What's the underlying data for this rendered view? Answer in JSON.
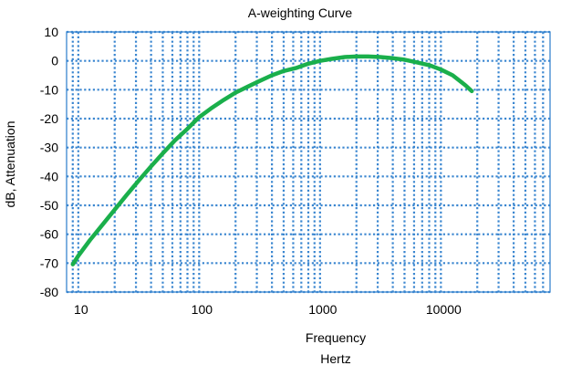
{
  "chart_data": {
    "type": "line",
    "title": "A-weighting Curve",
    "xlabel": [
      "Frequency",
      "Hertz"
    ],
    "ylabel": "dB, Attenuation",
    "x_scale": "log",
    "xlim": [
      8,
      80000
    ],
    "ylim": [
      -80,
      10
    ],
    "x_ticks": [
      10,
      100,
      1000,
      10000
    ],
    "x_tick_labels": [
      "10",
      "100",
      "1000",
      "10000"
    ],
    "y_ticks": [
      10,
      0,
      -10,
      -20,
      -30,
      -40,
      -50,
      -60,
      -70,
      -80
    ],
    "y_tick_labels": [
      "10",
      "0",
      "-10",
      "-20",
      "-30",
      "-40",
      "-50",
      "-60",
      "-70",
      "-80"
    ],
    "grid": true,
    "grid_style": "dotted",
    "legend": "none",
    "series": [
      {
        "x": [
          9,
          10,
          12.5,
          16,
          20,
          25,
          31.5,
          40,
          50,
          63,
          80,
          100,
          125,
          160,
          200,
          250,
          315,
          400,
          500,
          630,
          800,
          1000,
          1250,
          1600,
          2000,
          2500,
          3150,
          4000,
          5000,
          6300,
          8000,
          10000,
          12500,
          16000,
          18000
        ],
        "y": [
          -70.4,
          -67.5,
          -62,
          -56.5,
          -51.5,
          -46.5,
          -41.5,
          -36.5,
          -32,
          -27.5,
          -23.5,
          -19.5,
          -16.5,
          -13.5,
          -11,
          -9,
          -7,
          -5,
          -3.5,
          -2.5,
          -1,
          0,
          0.7,
          1.3,
          1.5,
          1.5,
          1.3,
          0.9,
          0.4,
          -0.5,
          -1.5,
          -3,
          -5,
          -8.5,
          -10.5
        ]
      }
    ],
    "colors": {
      "curve": "#1aaf4b",
      "grid": "#3a86d0",
      "frame": "#3a86d0"
    }
  }
}
